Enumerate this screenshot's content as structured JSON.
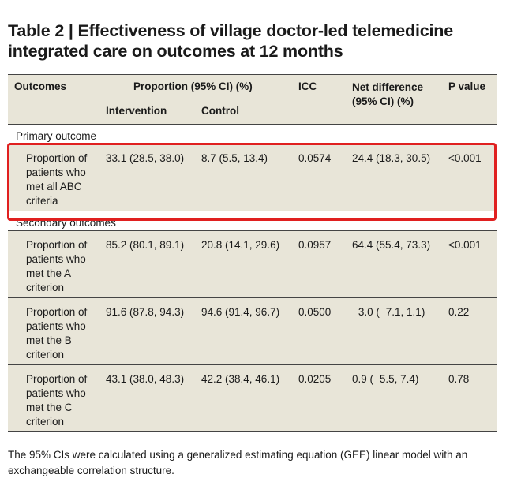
{
  "title": "Table 2 | Effectiveness of village doctor-led telemedicine integrated care on outcomes at 12 months",
  "headers": {
    "outcomes": "Outcomes",
    "proportion": "Proportion (95% CI) (%)",
    "intervention": "Intervention",
    "control": "Control",
    "icc": "ICC",
    "net_difference": "Net difference (95% CI) (%)",
    "p_value": "P value"
  },
  "sections": {
    "primary": "Primary outcome",
    "secondary": "Secondary outcomes"
  },
  "rows": [
    {
      "outcome": "Proportion of patients who met all ABC criteria",
      "intervention": "33.1 (28.5, 38.0)",
      "control": "8.7 (5.5, 13.4)",
      "icc": "0.0574",
      "net": "24.4 (18.3, 30.5)",
      "p": "<0.001"
    },
    {
      "outcome": "Proportion of patients who met the A criterion",
      "intervention": "85.2 (80.1, 89.1)",
      "control": "20.8 (14.1, 29.6)",
      "icc": "0.0957",
      "net": "64.4 (55.4, 73.3)",
      "p": "<0.001"
    },
    {
      "outcome": "Proportion of patients who met the B criterion",
      "intervention": "91.6 (87.8, 94.3)",
      "control": "94.6 (91.4, 96.7)",
      "icc": "0.0500",
      "net": "−3.0 (−7.1, 1.1)",
      "p": "0.22"
    },
    {
      "outcome": "Proportion of patients who met the C criterion",
      "intervention": "43.1 (38.0, 48.3)",
      "control": "42.2 (38.4, 46.1)",
      "icc": "0.0205",
      "net": "0.9 (−5.5, 7.4)",
      "p": "0.78"
    }
  ],
  "footnote": "The 95% CIs were calculated using a generalized estimating equation (GEE) linear model with an exchangeable correlation structure.",
  "colors": {
    "header_bg": "#e8e5d8",
    "highlight_border": "#e02020"
  }
}
